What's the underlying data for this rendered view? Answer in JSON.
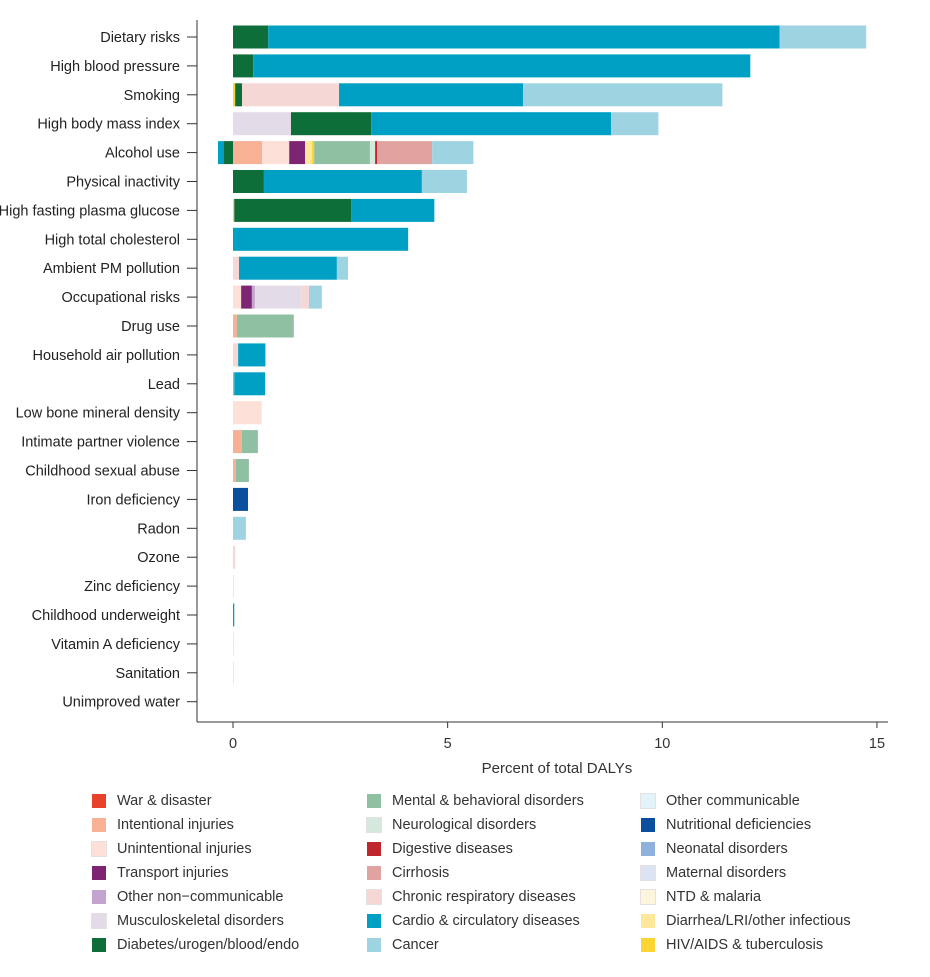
{
  "chart_data": {
    "type": "bar",
    "orientation": "horizontal",
    "stacked": true,
    "xlabel": "Percent of total DALYs",
    "xlim": [
      -0.85,
      15.3
    ],
    "xticks": [
      0,
      5,
      10,
      15
    ],
    "grid": false,
    "legend_position": "bottom",
    "categories": [
      "Dietary risks",
      "High blood pressure",
      "Smoking",
      "High body mass index",
      "Alcohol use",
      "Physical inactivity",
      "High fasting plasma glucose",
      "High total cholesterol",
      "Ambient PM pollution",
      "Occupational risks",
      "Drug use",
      "Household air pollution",
      "Lead",
      "Low bone mineral density",
      "Intimate partner violence",
      "Childhood sexual abuse",
      "Iron deficiency",
      "Radon",
      "Ozone",
      "Zinc deficiency",
      "Childhood underweight",
      "Vitamin A deficiency",
      "Sanitation",
      "Unimproved water"
    ],
    "legend": [
      {
        "name": "War & disaster",
        "color": "#e8412c"
      },
      {
        "name": "Intentional injuries",
        "color": "#f8b195"
      },
      {
        "name": "Unintentional injuries",
        "color": "#fde0d8"
      },
      {
        "name": "Transport injuries",
        "color": "#7d2473"
      },
      {
        "name": "Other non−communicable",
        "color": "#c5a3cf"
      },
      {
        "name": "Musculoskeletal disorders",
        "color": "#e4dbe8"
      },
      {
        "name": "Diabetes/urogen/blood/endo",
        "color": "#0e6e3a"
      },
      {
        "name": "Mental & behavioral disorders",
        "color": "#90c0a2"
      },
      {
        "name": "Neurological disorders",
        "color": "#d5e8de"
      },
      {
        "name": "Digestive diseases",
        "color": "#c0272d"
      },
      {
        "name": "Cirrhosis",
        "color": "#e0a39f"
      },
      {
        "name": "Chronic respiratory diseases",
        "color": "#f5d7d6"
      },
      {
        "name": "Cardio & circulatory diseases",
        "color": "#00a0c4"
      },
      {
        "name": "Cancer",
        "color": "#9ed4e2"
      },
      {
        "name": "Other communicable",
        "color": "#e2f3fa"
      },
      {
        "name": "Nutritional deficiencies",
        "color": "#0a4f9e"
      },
      {
        "name": "Neonatal disorders",
        "color": "#90b1dc"
      },
      {
        "name": "Maternal disorders",
        "color": "#dce4f4"
      },
      {
        "name": "NTD & malaria",
        "color": "#fdf6dc"
      },
      {
        "name": "Diarrhea/LRI/other infectious",
        "color": "#fde89a"
      },
      {
        "name": "HIV/AIDS & tuberculosis",
        "color": "#fcd433"
      }
    ],
    "bars": [
      {
        "category": "Dietary risks",
        "segments": [
          [
            "Diabetes/urogen/blood/endo",
            0.82
          ],
          [
            "Cardio & circulatory diseases",
            11.91
          ],
          [
            "Cancer",
            2.02
          ]
        ]
      },
      {
        "category": "High blood pressure",
        "segments": [
          [
            "Diabetes/urogen/blood/endo",
            0.47
          ],
          [
            "Cardio & circulatory diseases",
            11.58
          ]
        ]
      },
      {
        "category": "Smoking",
        "segments": [
          [
            "HIV/AIDS & tuberculosis",
            0.05
          ],
          [
            "Diabetes/urogen/blood/endo",
            0.16
          ],
          [
            "Chronic respiratory diseases",
            2.26
          ],
          [
            "Cardio & circulatory diseases",
            4.29
          ],
          [
            "Cancer",
            4.64
          ]
        ]
      },
      {
        "category": "High body mass index",
        "segments": [
          [
            "Musculoskeletal disorders",
            1.35
          ],
          [
            "Diabetes/urogen/blood/endo",
            1.87
          ],
          [
            "Cardio & circulatory diseases",
            5.59
          ],
          [
            "Cancer",
            1.1
          ]
        ]
      },
      {
        "category": "Alcohol use",
        "negative": [
          [
            "Diabetes/urogen/blood/endo",
            -0.21
          ],
          [
            "Cardio & circulatory diseases",
            -0.14
          ]
        ],
        "segments": [
          [
            "Intentional injuries",
            0.68
          ],
          [
            "Unintentional injuries",
            0.63
          ],
          [
            "Transport injuries",
            0.37
          ],
          [
            "Diarrhea/LRI/other infectious",
            0.16
          ],
          [
            "HIV/AIDS & tuberculosis",
            0.05
          ],
          [
            "Mental & behavioral disorders",
            1.3
          ],
          [
            "Neurological disorders",
            0.12
          ],
          [
            "Digestive diseases",
            0.05
          ],
          [
            "Cirrhosis",
            1.28
          ],
          [
            "Cancer",
            0.96
          ]
        ]
      },
      {
        "category": "Physical inactivity",
        "segments": [
          [
            "Diabetes/urogen/blood/endo",
            0.72
          ],
          [
            "Cardio & circulatory diseases",
            3.68
          ],
          [
            "Cancer",
            1.05
          ]
        ]
      },
      {
        "category": "High fasting plasma glucose",
        "segments": [
          [
            "HIV/AIDS & tuberculosis",
            0.03
          ],
          [
            "Diabetes/urogen/blood/endo",
            2.72
          ],
          [
            "Cardio & circulatory diseases",
            1.94
          ]
        ]
      },
      {
        "category": "High total cholesterol",
        "segments": [
          [
            "Cardio & circulatory diseases",
            4.08
          ]
        ]
      },
      {
        "category": "Ambient PM pollution",
        "segments": [
          [
            "Chronic respiratory diseases",
            0.14
          ],
          [
            "Cardio & circulatory diseases",
            2.28
          ],
          [
            "Cancer",
            0.26
          ]
        ]
      },
      {
        "category": "Occupational risks",
        "segments": [
          [
            "Unintentional injuries",
            0.19
          ],
          [
            "Transport injuries",
            0.25
          ],
          [
            "Other non−communicable",
            0.07
          ],
          [
            "Musculoskeletal disorders",
            1.09
          ],
          [
            "Chronic respiratory diseases",
            0.17
          ],
          [
            "Cancer",
            0.3
          ]
        ]
      },
      {
        "category": "Drug use",
        "segments": [
          [
            "Intentional injuries",
            0.09
          ],
          [
            "Mental & behavioral disorders",
            1.31
          ],
          [
            "Cirrhosis",
            0.02
          ]
        ]
      },
      {
        "category": "Household air pollution",
        "segments": [
          [
            "Chronic respiratory diseases",
            0.12
          ],
          [
            "Cardio & circulatory diseases",
            0.63
          ],
          [
            "Cancer",
            0.02
          ]
        ]
      },
      {
        "category": "Lead",
        "segments": [
          [
            "Mental & behavioral disorders",
            0.03
          ],
          [
            "Cardio & circulatory diseases",
            0.72
          ]
        ]
      },
      {
        "category": "Low bone mineral density",
        "segments": [
          [
            "Unintentional injuries",
            0.67
          ]
        ]
      },
      {
        "category": "Intimate partner violence",
        "segments": [
          [
            "Intentional injuries",
            0.21
          ],
          [
            "Mental & behavioral disorders",
            0.37
          ]
        ]
      },
      {
        "category": "Childhood sexual abuse",
        "segments": [
          [
            "Intentional injuries",
            0.07
          ],
          [
            "Mental & behavioral disorders",
            0.3
          ]
        ]
      },
      {
        "category": "Iron deficiency",
        "segments": [
          [
            "Nutritional deficiencies",
            0.35
          ]
        ]
      },
      {
        "category": "Radon",
        "segments": [
          [
            "Cancer",
            0.3
          ]
        ]
      },
      {
        "category": "Ozone",
        "segments": [
          [
            "Chronic respiratory diseases",
            0.05
          ]
        ]
      },
      {
        "category": "Zinc deficiency",
        "segments": [
          [
            "Diarrhea/LRI/other infectious",
            0.02
          ]
        ]
      },
      {
        "category": "Childhood underweight",
        "segments": [
          [
            "Cardio & circulatory diseases",
            0.03
          ]
        ]
      },
      {
        "category": "Vitamin A deficiency",
        "segments": [
          [
            "Diarrhea/LRI/other infectious",
            0.02
          ]
        ]
      },
      {
        "category": "Sanitation",
        "segments": [
          [
            "Diarrhea/LRI/other infectious",
            0.02
          ]
        ]
      },
      {
        "category": "Unimproved water",
        "segments": []
      }
    ]
  }
}
